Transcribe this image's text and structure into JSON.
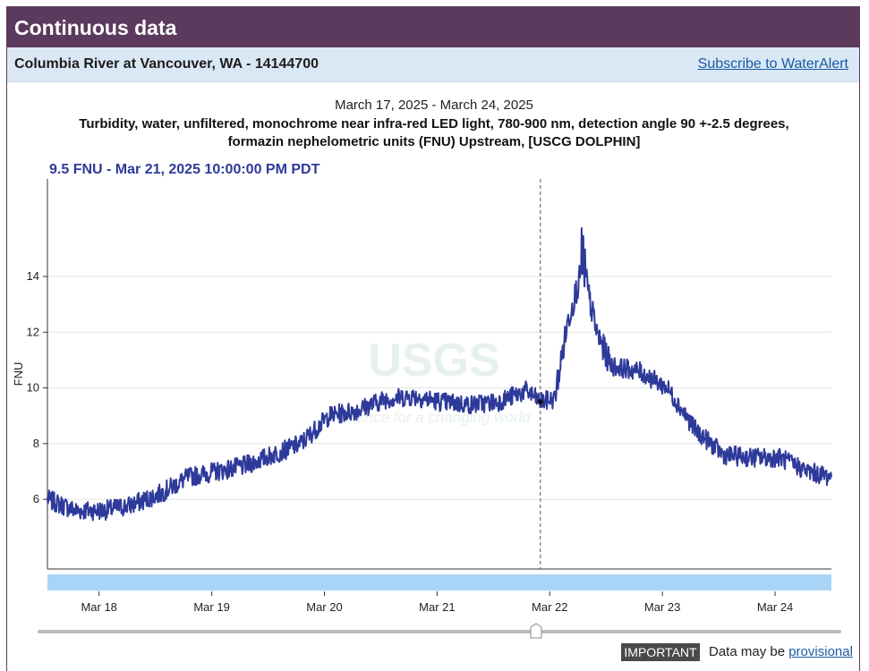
{
  "header": {
    "title": "Continuous data"
  },
  "site": {
    "name": "Columbia River at Vancouver, WA - 14144700",
    "subscribe_label": "Subscribe to WaterAlert"
  },
  "footer": {
    "badge": "IMPORTANT",
    "text": "Data may be ",
    "link": "provisional"
  },
  "watermark": {
    "logo": "USGS",
    "tagline": "science for a changing world"
  },
  "colors": {
    "header_bg": "#5c3a5e",
    "subheader_bg": "#d9e8f4",
    "series": "#2e3a9a",
    "brush": "#a8d4f7",
    "link": "#1a5aa5"
  },
  "chart_data": {
    "type": "line",
    "date_range": "March 17, 2025 - March 24, 2025",
    "title_line1": "Turbidity, water, unfiltered, monochrome near infra-red LED light, 780-900 nm, detection angle 90 +-2.5 degrees,",
    "title_line2": "formazin nephelometric units (FNU) Upstream, [USCG DOLPHIN]",
    "tooltip": "9.5 FNU - Mar 21, 2025 10:00:00 PM PDT",
    "ylabel": "FNU",
    "ylim": [
      3.5,
      17.5
    ],
    "yticks": [
      6,
      8,
      10,
      12,
      14
    ],
    "xlim": [
      "2025-03-17T13:00",
      "2025-03-24T12:00"
    ],
    "xticks": [
      {
        "t": "2025-03-18T00:00",
        "label": "Mar 18"
      },
      {
        "t": "2025-03-19T00:00",
        "label": "Mar 19"
      },
      {
        "t": "2025-03-20T00:00",
        "label": "Mar 20"
      },
      {
        "t": "2025-03-21T00:00",
        "label": "Mar 21"
      },
      {
        "t": "2025-03-22T00:00",
        "label": "Mar 22"
      },
      {
        "t": "2025-03-23T00:00",
        "label": "Mar 23"
      },
      {
        "t": "2025-03-24T00:00",
        "label": "Mar 24"
      }
    ],
    "cursor": "2025-03-21T22:00",
    "series": [
      {
        "x": [
          "2025-03-17T13:00",
          "2025-03-17T19:00",
          "2025-03-18T01:00",
          "2025-03-18T07:00",
          "2025-03-18T13:00",
          "2025-03-18T19:00",
          "2025-03-19T01:00",
          "2025-03-19T07:00",
          "2025-03-19T13:00",
          "2025-03-19T19:00",
          "2025-03-20T01:00",
          "2025-03-20T07:00",
          "2025-03-20T13:00",
          "2025-03-20T19:00",
          "2025-03-21T01:00",
          "2025-03-21T07:00",
          "2025-03-21T13:00",
          "2025-03-21T19:00",
          "2025-03-21T22:00",
          "2025-03-22T01:00",
          "2025-03-22T04:00",
          "2025-03-22T07:00",
          "2025-03-22T10:00",
          "2025-03-22T13:00",
          "2025-03-22T19:00",
          "2025-03-23T01:00",
          "2025-03-23T07:00",
          "2025-03-23T13:00",
          "2025-03-23T19:00",
          "2025-03-24T01:00",
          "2025-03-24T07:00",
          "2025-03-24T12:00"
        ],
        "values": [
          6.0,
          5.6,
          5.6,
          5.8,
          6.2,
          6.8,
          7.0,
          7.2,
          7.6,
          8.0,
          9.0,
          9.2,
          9.6,
          9.7,
          9.5,
          9.4,
          9.5,
          9.9,
          9.5,
          9.6,
          12.5,
          14.3,
          12.0,
          10.8,
          10.6,
          10.0,
          8.5,
          7.6,
          7.5,
          7.5,
          7.0,
          6.8
        ]
      }
    ]
  }
}
